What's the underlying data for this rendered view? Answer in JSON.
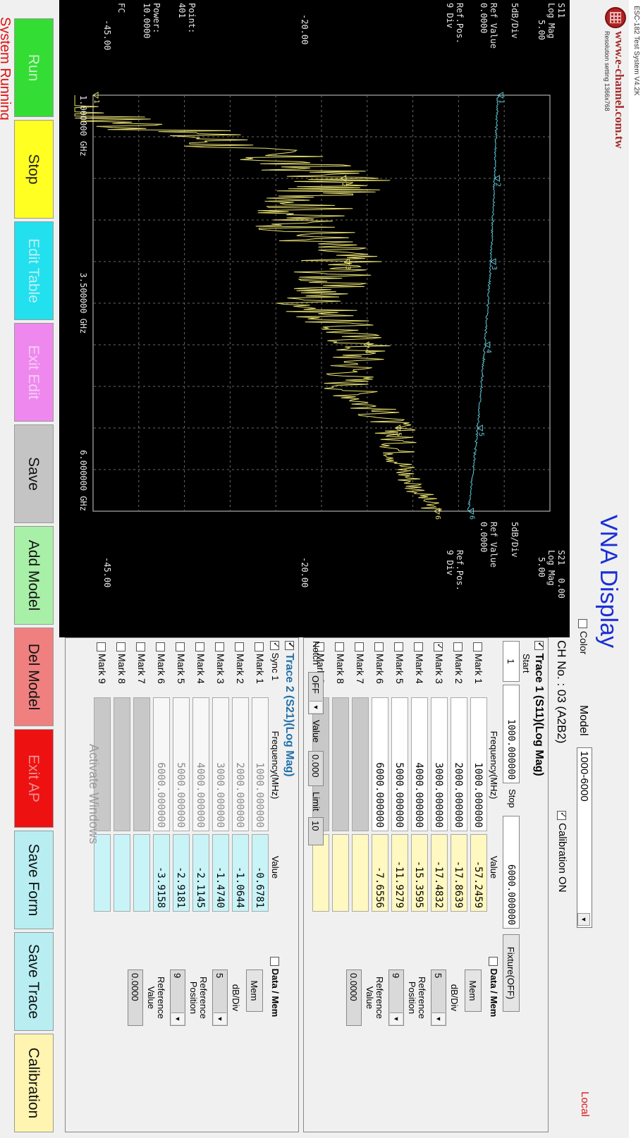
{
  "window": {
    "title": "ESC-182 Test System V4.2K"
  },
  "logo": {
    "url": "www.e-channel.com.tw",
    "resolution": "Resolution setting 1366x768"
  },
  "header": {
    "title": "VNA Display",
    "color_label": "Color",
    "color_checked": false,
    "model_label": "Model",
    "model_value": "1000-6000",
    "status": "Local"
  },
  "graph": {
    "left": {
      "param": "S11",
      "format": "Log Mag",
      "top_val": "5.00",
      "scale": "5dB/Div",
      "ref_value_label": "Ref Value",
      "ref_value": "0.0000",
      "ref_pos_label": "Ref.Pos.",
      "ref_pos": "9 Div",
      "mid_val": "-20.00",
      "point_label": "Point:",
      "points": "401",
      "power_label": "Power:",
      "power": "10.0000",
      "fc_label": "FC",
      "bottom_val": "-45.00"
    },
    "right": {
      "param": "S21",
      "param_val": "0.00",
      "format": "Log Mag",
      "top_val": "5.00",
      "scale": "5dB/Div",
      "ref_value_label": "Ref Value",
      "ref_value": "0.0000",
      "ref_pos_label": "Ref.Pos.",
      "ref_pos": "9 Div",
      "mid_val": "-20.00",
      "bottom_val": "-45.00"
    },
    "freq_start": "1.000000 GHz",
    "freq_center": "3.500000 GHz",
    "freq_stop": "6.000000 GHz"
  },
  "chart_data": {
    "type": "line",
    "x_unit": "GHz",
    "xlim": [
      1.0,
      6.0
    ],
    "ylim": [
      -45,
      5
    ],
    "series": [
      {
        "name": "S11",
        "color": "#e8e070",
        "x": [
          1.0,
          1.5,
          2.0,
          2.5,
          3.0,
          3.5,
          4.0,
          4.5,
          5.0,
          5.5,
          6.0
        ],
        "values": [
          -57.2,
          -33.0,
          -17.9,
          -23.0,
          -17.5,
          -21.0,
          -15.4,
          -17.0,
          -12.0,
          -11.0,
          -7.7
        ]
      },
      {
        "name": "S21",
        "color": "#5ec8d8",
        "x": [
          1.0,
          1.5,
          2.0,
          2.5,
          3.0,
          3.5,
          4.0,
          4.5,
          5.0,
          5.5,
          6.0
        ],
        "values": [
          -0.68,
          -0.9,
          -1.06,
          -1.25,
          -1.47,
          -1.8,
          -2.11,
          -2.5,
          -2.92,
          -3.4,
          -3.92
        ]
      }
    ],
    "markers": [
      {
        "label": "1",
        "x": 1.0,
        "s11": -57.2459,
        "s21": -0.6781
      },
      {
        "label": "2",
        "x": 2.0,
        "s11": -17.8639,
        "s21": -1.0644
      },
      {
        "label": "3",
        "x": 3.0,
        "s11": -17.4832,
        "s21": -1.474
      },
      {
        "label": "4",
        "x": 4.0,
        "s11": -15.3595,
        "s21": -2.1145
      },
      {
        "label": "5",
        "x": 5.0,
        "s11": -11.9279,
        "s21": -2.9181
      },
      {
        "label": "6",
        "x": 6.0,
        "s11": -7.6556,
        "s21": -3.9158
      }
    ]
  },
  "panel": {
    "ch_label": "CH No. : 03 (A2B2)",
    "calibration_label": "Calibration ON",
    "trace1": {
      "title": "Trace 1 (S11)(Log Mag)",
      "start_label": "Start",
      "start_index": "1",
      "start_value": "1000.000000",
      "stop_label": "Stop",
      "stop_value": "6000.000000",
      "fixture": "Fixture(OFF)",
      "col_freq": "Frequency(MHz)",
      "col_value": "Value",
      "data_mem_label": "Data / Mem",
      "mem_button": "Mem",
      "dbdiv_label": "dB/Div",
      "dbdiv_value": "5",
      "refpos_label": "Reference Position",
      "refpos_value": "9",
      "refval_label": "Reference Value",
      "refval_value": "0.0000",
      "notch_label": "Notch",
      "notch_value": "OFF",
      "value_label": "Value",
      "value_value": "0.000",
      "limit_label": "Limit",
      "limit_value": "10",
      "marks": [
        {
          "name": "Mark 1",
          "checked": false,
          "freq": "1000.000000",
          "value": "-57.2459"
        },
        {
          "name": "Mark 2",
          "checked": false,
          "freq": "2000.000000",
          "value": "-17.8639"
        },
        {
          "name": "Mark 3",
          "checked": true,
          "freq": "3000.000000",
          "value": "-17.4832"
        },
        {
          "name": "Mark 4",
          "checked": false,
          "freq": "4000.000000",
          "value": "-15.3595"
        },
        {
          "name": "Mark 5",
          "checked": false,
          "freq": "5000.000000",
          "value": "-11.9279"
        },
        {
          "name": "Mark 6",
          "checked": false,
          "freq": "6000.000000",
          "value": "-7.6556"
        },
        {
          "name": "Mark 7",
          "checked": false,
          "freq": "",
          "value": ""
        },
        {
          "name": "Mark 8",
          "checked": false,
          "freq": "",
          "value": ""
        },
        {
          "name": "Mark 9",
          "checked": false,
          "freq": "",
          "value": ""
        }
      ]
    },
    "trace2": {
      "title": "Trace 2 (S21)(Log Mag)",
      "sync_label": "Sync 1",
      "col_freq": "Frequency(MHz)",
      "col_value": "Value",
      "data_mem_label": "Data / Mem",
      "mem_button": "Mem",
      "dbdiv_label": "dB/Div",
      "dbdiv_value": "5",
      "refpos_label": "Reference Position",
      "refpos_value": "9",
      "refval_label": "Reference Value",
      "refval_value": "0.0000",
      "marks": [
        {
          "name": "Mark 1",
          "checked": false,
          "freq": "1000.000000",
          "value": "-0.6781"
        },
        {
          "name": "Mark 2",
          "checked": false,
          "freq": "2000.000000",
          "value": "-1.0644"
        },
        {
          "name": "Mark 3",
          "checked": false,
          "freq": "3000.000000",
          "value": "-1.4740"
        },
        {
          "name": "Mark 4",
          "checked": false,
          "freq": "4000.000000",
          "value": "-2.1145"
        },
        {
          "name": "Mark 5",
          "checked": false,
          "freq": "5000.000000",
          "value": "-2.9181"
        },
        {
          "name": "Mark 6",
          "checked": false,
          "freq": "6000.000000",
          "value": "-3.9158"
        },
        {
          "name": "Mark 7",
          "checked": false,
          "freq": "",
          "value": ""
        },
        {
          "name": "Mark 8",
          "checked": false,
          "freq": "",
          "value": ""
        },
        {
          "name": "Mark 9",
          "checked": false,
          "freq": "",
          "value": ""
        }
      ]
    }
  },
  "buttons": [
    {
      "id": "run",
      "label": "Run",
      "bg": "#33dd33",
      "fg": "#c8f0c8"
    },
    {
      "id": "stop",
      "label": "Stop",
      "bg": "#ffff22",
      "fg": "#222222"
    },
    {
      "id": "edit-table",
      "label": "Edit Table",
      "bg": "#22e0ee",
      "fg": "#bdeff5"
    },
    {
      "id": "exit-edit",
      "label": "Exit Edit",
      "bg": "#ee88ee",
      "fg": "#f6cdf6"
    },
    {
      "id": "save",
      "label": "Save",
      "bg": "#c4c4c4",
      "fg": "#111111"
    },
    {
      "id": "add-model",
      "label": "Add Model",
      "bg": "#a8f0a8",
      "fg": "#111111"
    },
    {
      "id": "del-model",
      "label": "Del Model",
      "bg": "#f08080",
      "fg": "#111111"
    },
    {
      "id": "exit-ap",
      "label": "Exit AP",
      "bg": "#ee1111",
      "fg": "#f09090"
    },
    {
      "id": "save-form",
      "label": "Save Form",
      "bg": "#b8eef2",
      "fg": "#111111"
    },
    {
      "id": "save-trace",
      "label": "Save Trace",
      "bg": "#b8eef2",
      "fg": "#111111"
    },
    {
      "id": "calibration",
      "label": "Calibration",
      "bg": "#fff4b0",
      "fg": "#111111"
    }
  ],
  "status_bar": {
    "text": "System Running"
  },
  "watermark": "Activate Windows"
}
